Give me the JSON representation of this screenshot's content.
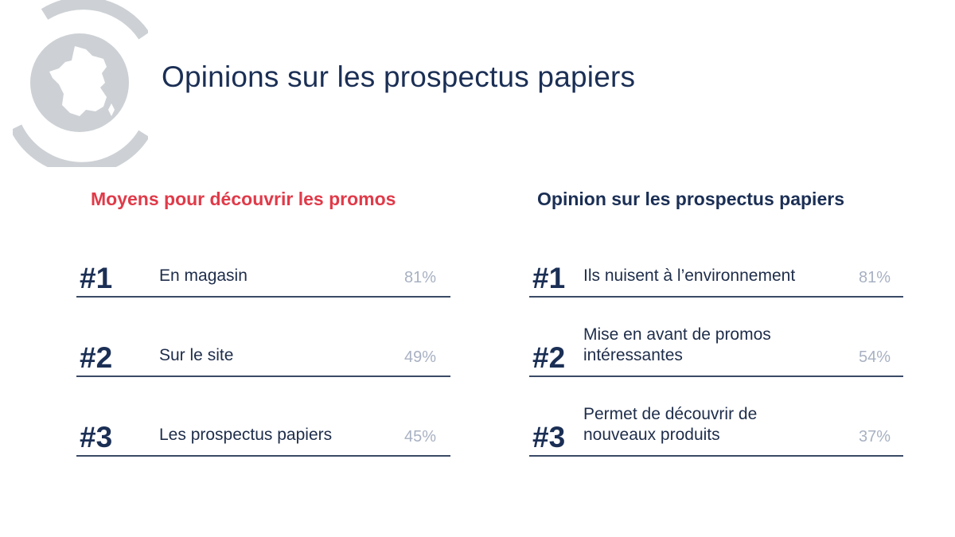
{
  "title": "Opinions sur les prospectus papiers",
  "logo_icon": "france-map-icon",
  "colors": {
    "navy": "#1b2f55",
    "accent_red": "#e03a49",
    "muted_gray": "#a8b1c2",
    "logo_gray": "#cdd1d5"
  },
  "left_column": {
    "title": "Moyens pour découvrir les promos",
    "items": [
      {
        "rank": "#1",
        "label": "En magasin",
        "value": "81%"
      },
      {
        "rank": "#2",
        "label": "Sur le site",
        "value": "49%"
      },
      {
        "rank": "#3",
        "label": "Les prospectus papiers",
        "value": "45%"
      }
    ]
  },
  "right_column": {
    "title": "Opinion sur les prospectus papiers",
    "items": [
      {
        "rank": "#1",
        "label": "Ils nuisent à l’environnement",
        "value": "81%"
      },
      {
        "rank": "#2",
        "label": "Mise en avant de promos intéressantes",
        "value": "54%"
      },
      {
        "rank": "#3",
        "label": "Permet de découvrir de nouveaux produits",
        "value": "37%"
      }
    ]
  }
}
